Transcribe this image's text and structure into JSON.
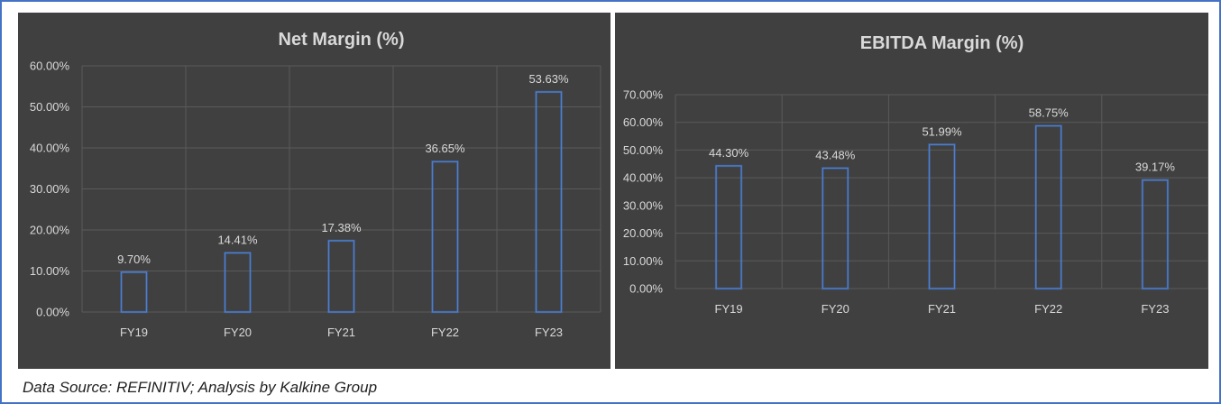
{
  "chart_data": [
    {
      "type": "bar",
      "title": "Net Margin (%)",
      "categories": [
        "FY19",
        "FY20",
        "FY21",
        "FY22",
        "FY23"
      ],
      "values": [
        9.7,
        14.41,
        17.38,
        36.65,
        53.63
      ],
      "value_labels": [
        "9.70%",
        "14.41%",
        "17.38%",
        "36.65%",
        "53.63%"
      ],
      "ylim": [
        0,
        60
      ],
      "yticks": [
        0,
        10,
        20,
        30,
        40,
        50,
        60
      ],
      "ytick_labels": [
        "0.00%",
        "10.00%",
        "20.00%",
        "30.00%",
        "40.00%",
        "50.00%",
        "60.00%"
      ],
      "xlabel": "",
      "ylabel": "",
      "grid": true,
      "legend": "none"
    },
    {
      "type": "bar",
      "title": "EBITDA Margin (%)",
      "categories": [
        "FY19",
        "FY20",
        "FY21",
        "FY22",
        "FY23"
      ],
      "values": [
        44.3,
        43.48,
        51.99,
        58.75,
        39.17
      ],
      "value_labels": [
        "44.30%",
        "43.48%",
        "51.99%",
        "58.75%",
        "39.17%"
      ],
      "ylim": [
        0,
        70
      ],
      "yticks": [
        0,
        10,
        20,
        30,
        40,
        50,
        60,
        70
      ],
      "ytick_labels": [
        "0.00%",
        "10.00%",
        "20.00%",
        "30.00%",
        "40.00%",
        "50.00%",
        "60.00%",
        "70.00%"
      ],
      "xlabel": "",
      "ylabel": "",
      "grid": true,
      "legend": "none"
    }
  ],
  "footer": {
    "source_text": "Data Source: REFINITIV; Analysis by Kalkine Group"
  },
  "colors": {
    "panel_bg": "#404040",
    "bar_outline": "#4a7fd4",
    "grid": "#5a5a5a",
    "text": "#d9d9d9",
    "frame_border": "#4472c4"
  }
}
